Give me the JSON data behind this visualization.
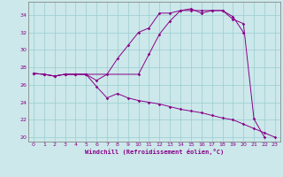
{
  "xlabel": "Windchill (Refroidissement éolien,°C)",
  "xlim": [
    -0.5,
    23.5
  ],
  "ylim": [
    19.5,
    35.5
  ],
  "xticks": [
    0,
    1,
    2,
    3,
    4,
    5,
    6,
    7,
    8,
    9,
    10,
    11,
    12,
    13,
    14,
    15,
    16,
    17,
    18,
    19,
    20,
    21,
    22,
    23
  ],
  "yticks": [
    20,
    22,
    24,
    26,
    28,
    30,
    32,
    34
  ],
  "bg_color": "#cce8ea",
  "grid_color": "#99ccd0",
  "line_color": "#880088",
  "line1_x": [
    0,
    1,
    2,
    3,
    4,
    5,
    10,
    11,
    12,
    13,
    14,
    15,
    16,
    17,
    18,
    19,
    20,
    21,
    22
  ],
  "line1_y": [
    27.3,
    27.2,
    27.0,
    27.2,
    27.2,
    27.2,
    27.2,
    29.5,
    31.8,
    33.3,
    34.5,
    34.7,
    34.2,
    34.5,
    34.5,
    33.5,
    33.0,
    22.1,
    20.0
  ],
  "line2_x": [
    0,
    1,
    2,
    3,
    4,
    5,
    6,
    7,
    8,
    9,
    10,
    11,
    12,
    13,
    14,
    15,
    16,
    17,
    18,
    19,
    20,
    21
  ],
  "line2_y": [
    27.3,
    27.2,
    27.0,
    27.2,
    27.2,
    27.2,
    26.5,
    27.2,
    29.0,
    30.5,
    32.0,
    32.5,
    34.2,
    34.2,
    34.5,
    34.5,
    34.5,
    34.5,
    34.5,
    33.8,
    32.0,
    null
  ],
  "line3_x": [
    0,
    1,
    2,
    3,
    4,
    5,
    6,
    7,
    8,
    9,
    10,
    11,
    12,
    13,
    14,
    15,
    16,
    17,
    18,
    19,
    20,
    21,
    22,
    23
  ],
  "line3_y": [
    27.3,
    27.2,
    27.0,
    27.2,
    27.2,
    27.2,
    25.8,
    24.5,
    25.0,
    24.5,
    24.2,
    24.0,
    23.8,
    23.5,
    23.2,
    23.0,
    22.8,
    22.5,
    22.2,
    22.0,
    21.5,
    21.0,
    20.5,
    20.0
  ]
}
